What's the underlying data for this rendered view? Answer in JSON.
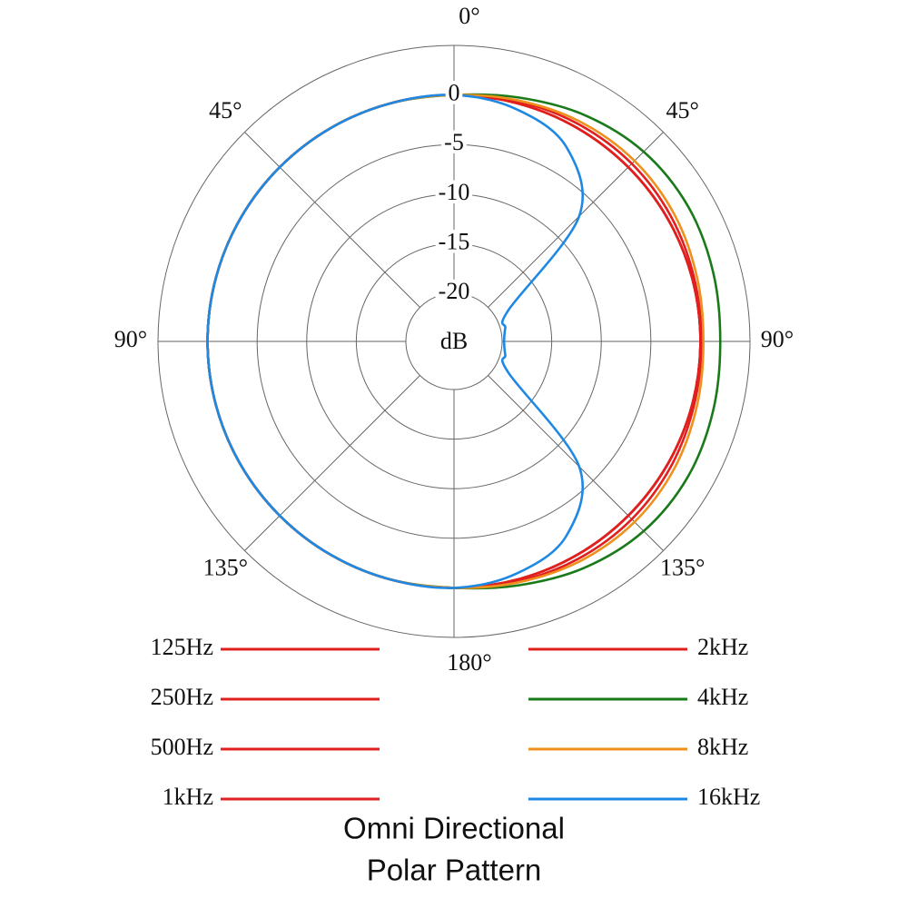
{
  "chart_data": {
    "type": "polar",
    "title": [
      "Omni Directional",
      "Polar Pattern"
    ],
    "r_label": "dB",
    "rlim": [
      -20,
      5
    ],
    "rticks": [
      0,
      -5,
      -10,
      -15,
      -20
    ],
    "thetaticks": [
      {
        "value": 0,
        "label": "0°"
      },
      {
        "value": 45,
        "label": "45°"
      },
      {
        "value": 90,
        "label": "90°"
      },
      {
        "value": 135,
        "label": "135°"
      },
      {
        "value": 180,
        "label": "180°"
      },
      {
        "value": 225,
        "label": "135°"
      },
      {
        "value": 270,
        "label": "90°"
      },
      {
        "value": 315,
        "label": "45°"
      }
    ],
    "theta": [
      0,
      15,
      30,
      45,
      60,
      75,
      90,
      105,
      120,
      135,
      150,
      165,
      180,
      195,
      210,
      225,
      240,
      255,
      270,
      285,
      300,
      315,
      330,
      345
    ],
    "series": [
      {
        "name": "125Hz",
        "color": "#e0201f",
        "values": [
          0,
          0,
          0,
          0,
          0,
          0,
          0,
          0,
          0,
          0,
          0,
          0,
          0,
          0,
          0,
          0,
          0,
          0,
          0,
          0,
          0,
          0,
          0,
          0
        ]
      },
      {
        "name": "250Hz",
        "color": "#e0201f",
        "values": [
          0,
          0,
          0,
          0,
          0,
          0,
          0,
          0,
          0,
          0,
          0,
          0,
          0,
          0,
          0,
          0,
          0,
          0,
          0,
          0,
          0,
          0,
          0,
          0
        ]
      },
      {
        "name": "500Hz",
        "color": "#e0201f",
        "values": [
          0,
          0,
          0,
          0,
          0,
          0,
          0,
          0,
          0,
          0,
          0,
          0,
          0,
          0,
          0,
          0,
          0,
          0,
          0,
          0,
          0,
          0,
          0,
          0
        ]
      },
      {
        "name": "1kHz",
        "color": "#e0201f",
        "values": [
          0,
          0,
          0,
          0,
          0,
          0,
          0,
          0,
          0,
          0,
          0,
          0,
          0,
          0,
          0,
          0,
          0,
          0,
          0,
          0,
          0,
          0,
          0,
          0
        ]
      },
      {
        "name": "2kHz",
        "color": "#e0201f",
        "values": [
          0,
          0.2,
          0.4,
          0.5,
          0.4,
          0.2,
          0.1,
          0.2,
          0.4,
          0.5,
          0.4,
          0.2,
          0,
          0,
          0,
          0,
          0,
          0,
          0,
          0,
          0,
          0,
          0,
          0
        ]
      },
      {
        "name": "4kHz",
        "color": "#1a7a1a",
        "values": [
          0,
          0.6,
          1.5,
          2.2,
          2.4,
          2.2,
          2.0,
          2.2,
          2.4,
          2.2,
          1.5,
          0.6,
          0,
          0,
          0,
          0,
          0,
          0,
          0,
          0,
          0,
          0,
          0,
          0
        ]
      },
      {
        "name": "8kHz",
        "color": "#f0901c",
        "values": [
          0,
          0.3,
          0.7,
          0.9,
          0.8,
          0.5,
          0.3,
          0.5,
          0.8,
          0.9,
          0.7,
          0.3,
          0,
          0,
          0,
          0,
          0,
          0,
          0,
          0,
          0,
          0,
          0,
          0
        ]
      },
      {
        "name": "16kHz",
        "color": "#1e88e5",
        "values": [
          0,
          -0.6,
          -2.2,
          -7,
          -18.5,
          -19.5,
          -19.8,
          -19.5,
          -18.5,
          -7,
          -2.2,
          -0.6,
          0,
          0,
          0,
          0,
          0,
          0,
          0,
          0,
          0,
          0,
          0,
          0
        ]
      }
    ]
  }
}
